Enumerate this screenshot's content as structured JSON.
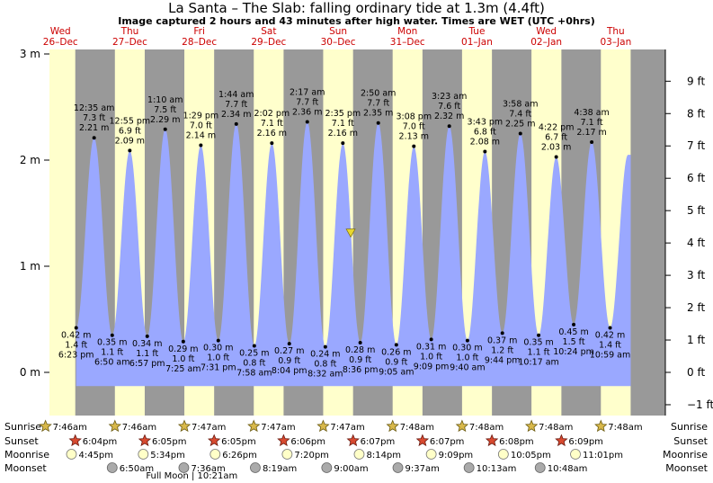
{
  "title": "La Santa – The Slab: falling  ordinary tide at 1.3m (4.4ft)",
  "subtitle": "Image captured 2 hours and 43 minutes after high water. Times are WET (UTC +0hrs)",
  "colors": {
    "water": "#9aa8ff",
    "day": "#ffffcc",
    "night": "#999999",
    "day_label": "#cc0000",
    "current_marker": "#e8d830"
  },
  "days": [
    {
      "dow": "Wed",
      "date": "26–Dec"
    },
    {
      "dow": "Thu",
      "date": "27–Dec"
    },
    {
      "dow": "Fri",
      "date": "28–Dec"
    },
    {
      "dow": "Sat",
      "date": "29–Dec"
    },
    {
      "dow": "Sun",
      "date": "30–Dec"
    },
    {
      "dow": "Mon",
      "date": "31–Dec"
    },
    {
      "dow": "Tue",
      "date": "01–Jan"
    },
    {
      "dow": "Wed",
      "date": "02–Jan"
    },
    {
      "dow": "Thu",
      "date": "03–Jan"
    }
  ],
  "chart_data": {
    "type": "area",
    "y_left_unit": "m",
    "y_right_unit": "ft",
    "y_left_ticks": [
      "3 m",
      "2 m",
      "1 m",
      "0 m"
    ],
    "y_right_ticks": [
      "9 ft",
      "8 ft",
      "7 ft",
      "6 ft",
      "5 ft",
      "4 ft",
      "3 ft",
      "2 ft",
      "1 ft",
      "0 ft",
      "−1 ft"
    ],
    "ylim_m": [
      -0.5,
      3.0
    ],
    "current": {
      "height_m": 1.3,
      "state": "falling"
    },
    "tides": [
      {
        "type": "low",
        "time": "6:23 pm",
        "m": "0.42 m",
        "ft": "1.4 ft"
      },
      {
        "type": "high",
        "time": "12:35 am",
        "m": "2.21 m",
        "ft": "7.3 ft"
      },
      {
        "type": "low",
        "time": "6:50 am",
        "m": "0.35 m",
        "ft": "1.1 ft"
      },
      {
        "type": "high",
        "time": "12:55 pm",
        "m": "2.09 m",
        "ft": "6.9 ft"
      },
      {
        "type": "low",
        "time": "6:57 pm",
        "m": "0.34 m",
        "ft": "1.1 ft"
      },
      {
        "type": "high",
        "time": "1:10 am",
        "m": "2.29 m",
        "ft": "7.5 ft"
      },
      {
        "type": "low",
        "time": "7:25 am",
        "m": "0.29 m",
        "ft": "1.0 ft"
      },
      {
        "type": "high",
        "time": "1:29 pm",
        "m": "2.14 m",
        "ft": "7.0 ft"
      },
      {
        "type": "low",
        "time": "7:31 pm",
        "m": "0.30 m",
        "ft": "1.0 ft"
      },
      {
        "type": "high",
        "time": "1:44 am",
        "m": "2.34 m",
        "ft": "7.7 ft"
      },
      {
        "type": "low",
        "time": "7:58 am",
        "m": "0.25 m",
        "ft": "0.8 ft"
      },
      {
        "type": "high",
        "time": "2:02 pm",
        "m": "2.16 m",
        "ft": "7.1 ft"
      },
      {
        "type": "low",
        "time": "8:04 pm",
        "m": "0.27 m",
        "ft": "0.9 ft"
      },
      {
        "type": "high",
        "time": "2:17 am",
        "m": "2.36 m",
        "ft": "7.7 ft"
      },
      {
        "type": "low",
        "time": "8:32 am",
        "m": "0.24 m",
        "ft": "0.8 ft"
      },
      {
        "type": "high",
        "time": "2:35 pm",
        "m": "2.16 m",
        "ft": "7.1 ft"
      },
      {
        "type": "low",
        "time": "8:36 pm",
        "m": "0.28 m",
        "ft": "0.9 ft"
      },
      {
        "type": "high",
        "time": "2:50 am",
        "m": "2.35 m",
        "ft": "7.7 ft"
      },
      {
        "type": "low",
        "time": "9:05 am",
        "m": "0.26 m",
        "ft": "0.9 ft"
      },
      {
        "type": "high",
        "time": "3:08 pm",
        "m": "2.13 m",
        "ft": "7.0 ft"
      },
      {
        "type": "low",
        "time": "9:09 pm",
        "m": "0.31 m",
        "ft": "1.0 ft"
      },
      {
        "type": "high",
        "time": "3:23 am",
        "m": "2.32 m",
        "ft": "7.6 ft"
      },
      {
        "type": "low",
        "time": "9:40 am",
        "m": "0.30 m",
        "ft": "1.0 ft"
      },
      {
        "type": "high",
        "time": "3:43 pm",
        "m": "2.08 m",
        "ft": "6.8 ft"
      },
      {
        "type": "low",
        "time": "9:44 pm",
        "m": "0.37 m",
        "ft": "1.2 ft"
      },
      {
        "type": "high",
        "time": "3:58 am",
        "m": "2.25 m",
        "ft": "7.4 ft"
      },
      {
        "type": "low",
        "time": "10:17 am",
        "m": "0.35 m",
        "ft": "1.1 ft"
      },
      {
        "type": "high",
        "time": "4:22 pm",
        "m": "2.03 m",
        "ft": "6.7 ft"
      },
      {
        "type": "low",
        "time": "10:24 pm",
        "m": "0.45 m",
        "ft": "1.5 ft"
      },
      {
        "type": "high",
        "time": "4:38 am",
        "m": "2.17 m",
        "ft": "7.1 ft"
      },
      {
        "type": "low",
        "time": "10:59 am",
        "m": "0.42 m",
        "ft": "1.4 ft"
      }
    ]
  },
  "events": {
    "labels": {
      "sunrise": "Sunrise",
      "sunset": "Sunset",
      "moonrise": "Moonrise",
      "moonset": "Moonset"
    },
    "sunrise": [
      "7:46am",
      "7:46am",
      "7:47am",
      "7:47am",
      "7:47am",
      "7:48am",
      "7:48am",
      "7:48am",
      "7:48am"
    ],
    "sunset": [
      "6:04pm",
      "6:05pm",
      "6:05pm",
      "6:06pm",
      "6:07pm",
      "6:07pm",
      "6:08pm",
      "6:09pm"
    ],
    "moonrise": [
      "4:45pm",
      "5:34pm",
      "6:26pm",
      "7:20pm",
      "8:14pm",
      "9:09pm",
      "10:05pm",
      "11:01pm"
    ],
    "moonset": [
      "6:50am",
      "7:36am",
      "8:19am",
      "9:00am",
      "9:37am",
      "10:13am",
      "10:48am"
    ],
    "moon_phase": "Full Moon | 10:21am"
  }
}
